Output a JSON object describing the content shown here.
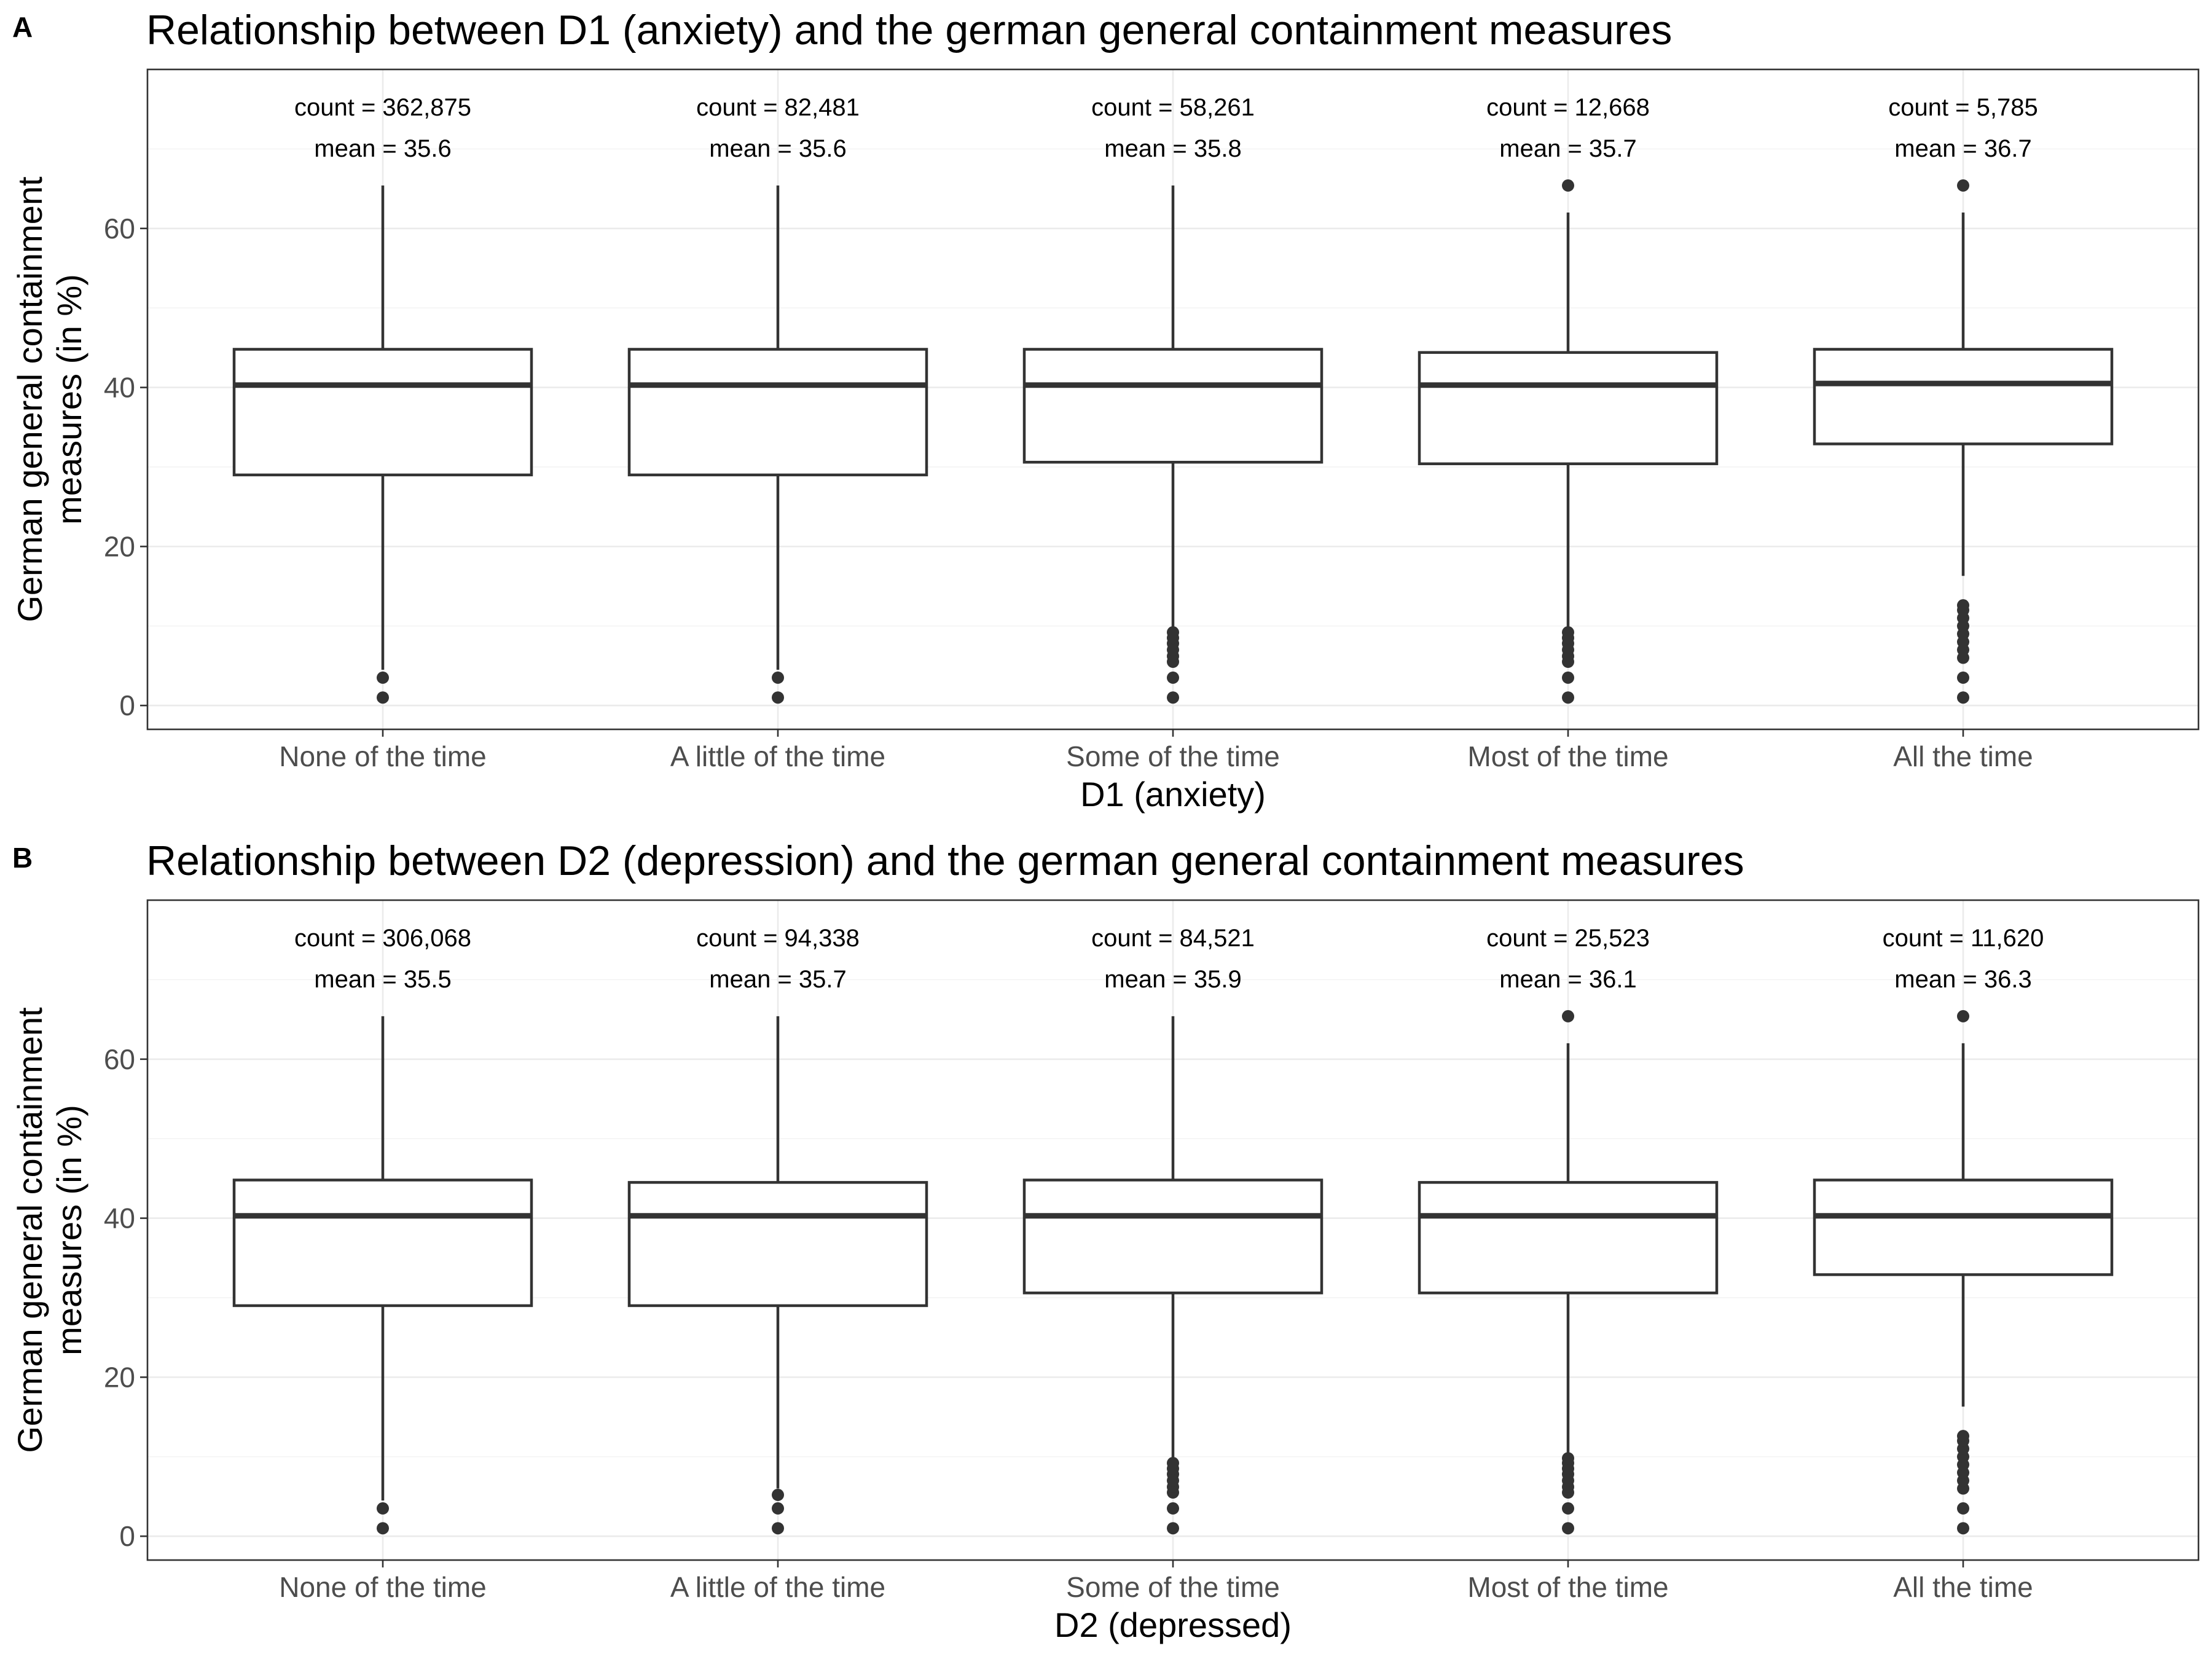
{
  "chart_data": [
    {
      "type": "box",
      "panel_label": "A",
      "title": "Relationship between D1 (anxiety) and the german general containment measures",
      "xlabel": "D1 (anxiety)",
      "ylabel": "German general containment\nmeasures (in %)",
      "ylim": [
        -3,
        80
      ],
      "yticks": [
        0,
        20,
        40,
        60
      ],
      "grid": true,
      "categories": [
        "None of the time",
        "A little of the time",
        "Some of the time",
        "Most of the time",
        "All the time"
      ],
      "boxes": [
        {
          "q1": 29.0,
          "median": 40.3,
          "q3": 44.8,
          "whisker_low": 4.5,
          "whisker_high": 65.4,
          "outliers": [
            1.0,
            3.5
          ]
        },
        {
          "q1": 29.0,
          "median": 40.3,
          "q3": 44.8,
          "whisker_low": 4.5,
          "whisker_high": 65.4,
          "outliers": [
            1.0,
            3.5
          ]
        },
        {
          "q1": 30.6,
          "median": 40.3,
          "q3": 44.8,
          "whisker_low": 9.5,
          "whisker_high": 65.4,
          "outliers": [
            1.0,
            3.5,
            5.5,
            6.2,
            7.0,
            7.8,
            8.5,
            9.2
          ]
        },
        {
          "q1": 30.4,
          "median": 40.3,
          "q3": 44.4,
          "whisker_low": 9.5,
          "whisker_high": 62.0,
          "outliers": [
            1.0,
            3.5,
            5.5,
            6.2,
            7.0,
            7.8,
            8.5,
            9.2,
            65.4
          ]
        },
        {
          "q1": 32.9,
          "median": 40.5,
          "q3": 44.8,
          "whisker_low": 16.3,
          "whisker_high": 62.0,
          "outliers": [
            1.0,
            3.5,
            6.0,
            7.0,
            8.0,
            9.0,
            10.0,
            11.0,
            12.0,
            12.6,
            65.4
          ]
        }
      ],
      "annotations": [
        {
          "count": "count = 362,875",
          "mean": "mean = 35.6"
        },
        {
          "count": "count = 82,481",
          "mean": "mean = 35.6"
        },
        {
          "count": "count = 58,261",
          "mean": "mean = 35.8"
        },
        {
          "count": "count = 12,668",
          "mean": "mean = 35.7"
        },
        {
          "count": "count = 5,785",
          "mean": "mean = 36.7"
        }
      ]
    },
    {
      "type": "box",
      "panel_label": "B",
      "title": "Relationship between D2 (depression) and the german general containment measures",
      "xlabel": "D2 (depressed)",
      "ylabel": "German general containment\nmeasures (in %)",
      "ylim": [
        -3,
        80
      ],
      "yticks": [
        0,
        20,
        40,
        60
      ],
      "grid": true,
      "categories": [
        "None of the time",
        "A little of the time",
        "Some of the time",
        "Most of the time",
        "All the time"
      ],
      "boxes": [
        {
          "q1": 29.0,
          "median": 40.3,
          "q3": 44.8,
          "whisker_low": 4.5,
          "whisker_high": 65.4,
          "outliers": [
            1.0,
            3.5
          ]
        },
        {
          "q1": 29.0,
          "median": 40.3,
          "q3": 44.5,
          "whisker_low": 6.0,
          "whisker_high": 65.4,
          "outliers": [
            1.0,
            3.5,
            5.2
          ]
        },
        {
          "q1": 30.6,
          "median": 40.3,
          "q3": 44.8,
          "whisker_low": 9.5,
          "whisker_high": 65.4,
          "outliers": [
            1.0,
            3.5,
            5.5,
            6.2,
            7.0,
            7.8,
            8.5,
            9.2
          ]
        },
        {
          "q1": 30.6,
          "median": 40.3,
          "q3": 44.5,
          "whisker_low": 10.2,
          "whisker_high": 62.0,
          "outliers": [
            1.0,
            3.5,
            5.5,
            6.2,
            7.0,
            7.8,
            8.5,
            9.2,
            9.8,
            65.4
          ]
        },
        {
          "q1": 32.9,
          "median": 40.3,
          "q3": 44.8,
          "whisker_low": 16.3,
          "whisker_high": 62.0,
          "outliers": [
            1.0,
            3.5,
            6.0,
            7.0,
            8.0,
            9.0,
            10.0,
            11.0,
            12.0,
            12.6,
            65.4
          ]
        }
      ],
      "annotations": [
        {
          "count": "count = 306,068",
          "mean": "mean = 35.5"
        },
        {
          "count": "count = 94,338",
          "mean": "mean = 35.7"
        },
        {
          "count": "count = 84,521",
          "mean": "mean = 35.9"
        },
        {
          "count": "count = 25,523",
          "mean": "mean = 36.1"
        },
        {
          "count": "count = 11,620",
          "mean": "mean = 36.3"
        }
      ]
    }
  ]
}
